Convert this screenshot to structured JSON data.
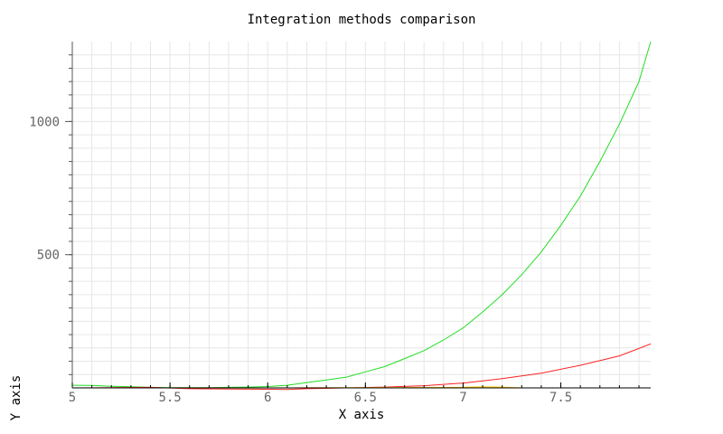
{
  "chart_data": {
    "type": "line",
    "title": "Integration methods comparison",
    "xlabel": "X axis",
    "ylabel": "Y axis",
    "xlim": [
      5,
      7.96
    ],
    "ylim": [
      0,
      1300
    ],
    "grid": true,
    "x_ticks": [
      5,
      5.5,
      6,
      6.5,
      7,
      7.5
    ],
    "x_tick_labels": [
      "5",
      "5.5",
      "6",
      "6.5",
      "7",
      "7.5"
    ],
    "y_ticks": [
      500,
      1000
    ],
    "y_tick_labels": [
      "500",
      "1000"
    ],
    "series": [
      {
        "color": "#22dd22",
        "x": [
          5.0,
          5.1,
          5.2,
          5.3,
          5.4,
          5.5,
          5.6,
          5.7,
          5.8,
          5.9,
          6.0,
          6.1,
          6.2,
          6.3,
          6.4,
          6.5,
          6.6,
          6.7,
          6.8,
          6.9,
          7.0,
          7.1,
          7.2,
          7.3,
          7.4,
          7.5,
          7.6,
          7.7,
          7.8,
          7.9,
          7.96
        ],
        "y": [
          10,
          9,
          6,
          4,
          2,
          1,
          1,
          1,
          2,
          3,
          5,
          10,
          20,
          30,
          40,
          60,
          80,
          110,
          140,
          180,
          225,
          285,
          350,
          425,
          510,
          610,
          720,
          850,
          990,
          1150,
          1300
        ]
      },
      {
        "color": "#ff2222",
        "x": [
          5.0,
          5.2,
          5.4,
          5.6,
          5.8,
          6.0,
          6.1,
          6.2,
          6.4,
          6.6,
          6.8,
          7.0,
          7.2,
          7.4,
          7.6,
          7.8,
          7.96
        ],
        "y": [
          0,
          1,
          2,
          -3,
          -4,
          -5,
          -6,
          -3,
          0,
          3,
          8,
          18,
          35,
          55,
          85,
          120,
          165
        ]
      },
      {
        "color": "#ffcc00",
        "x": [
          5.0,
          5.5,
          6.0,
          6.5,
          7.0,
          7.1,
          7.2,
          7.3
        ],
        "y": [
          0,
          0,
          0,
          1,
          2,
          4,
          3,
          0
        ]
      },
      {
        "color": "#0000cc",
        "x": [
          5.0,
          5.5,
          6.0,
          6.5,
          7.0,
          7.3
        ],
        "y": [
          0,
          0,
          0,
          0,
          0,
          0
        ]
      }
    ]
  }
}
